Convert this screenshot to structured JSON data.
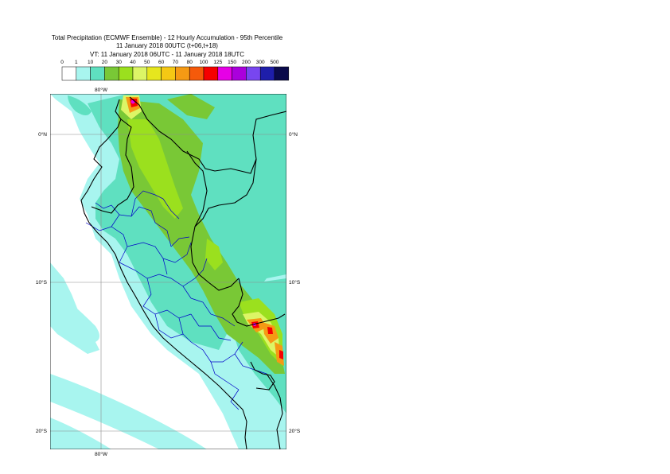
{
  "header": {
    "title": "Total Precipitation (ECMWF Ensemble) - 12 Hourly Accumulation - 95th Percentile",
    "base_time": "11 January 2018 00UTC (t+06,t+18)",
    "valid_time": "VT: 11 January 2018 06UTC - 11 January 2018 18UTC"
  },
  "legend": {
    "ticks": [
      "0",
      "1",
      "10",
      "20",
      "30",
      "40",
      "50",
      "60",
      "70",
      "80",
      "100",
      "125",
      "150",
      "200",
      "300",
      "500"
    ],
    "colors": [
      "#ffffff",
      "#a8f5ef",
      "#5fe0c0",
      "#79c836",
      "#9be01e",
      "#dcf566",
      "#e6e61e",
      "#f5c814",
      "#f59a14",
      "#f55a0a",
      "#f50000",
      "#e600e6",
      "#aa00dc",
      "#7846f0",
      "#1e1eaa",
      "#0a0a4b"
    ]
  },
  "map": {
    "lat_labels": [
      "0°N",
      "10°S",
      "20°S"
    ],
    "lon_labels": [
      "80°W",
      "80°W"
    ],
    "colors": {
      "sea": "#ffffff",
      "light": "#a8f5ef",
      "teal": "#5fe0c0",
      "green": "#79c836",
      "lime": "#9be01e",
      "yellow": "#dcf566",
      "orange": "#f59a14",
      "red": "#f50000",
      "magenta": "#e600e6",
      "border": "#000000",
      "region": "#0000c8",
      "grid": "#8c8c8c"
    }
  }
}
